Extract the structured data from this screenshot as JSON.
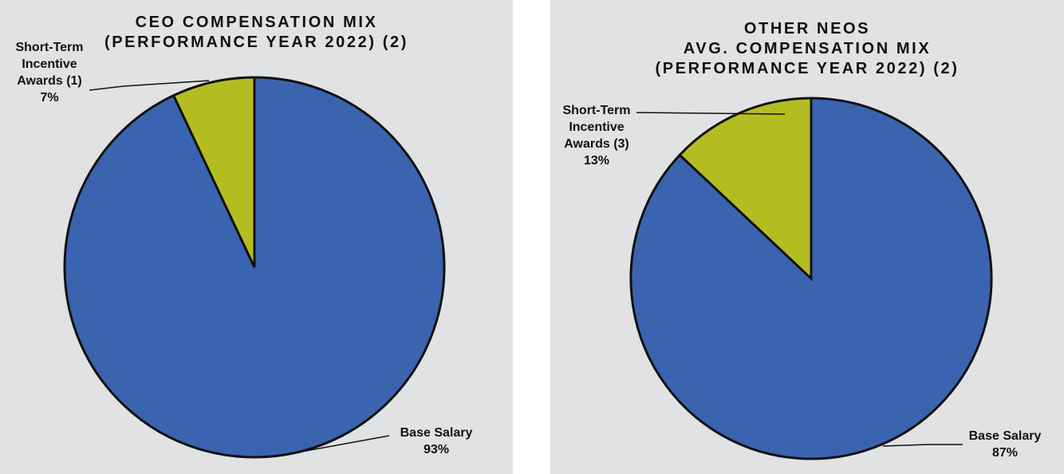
{
  "colors": {
    "panel_bg": "#e1e2e4",
    "base_salary": "#3a64b0",
    "short_term_incentive": "#b3bd22",
    "outline": "#111111"
  },
  "chart_data": [
    {
      "type": "pie",
      "title_lines": [
        "CEO COMPENSATION MIX",
        "(PERFORMANCE YEAR 2022) (2)"
      ],
      "slices": [
        {
          "label": "Base Salary",
          "label_lines": [
            "Base Salary"
          ],
          "value": 93,
          "value_label": "93%",
          "color": "#3a64b0"
        },
        {
          "label": "Short-Term Incentive Awards (1)",
          "label_lines": [
            "Short-Term",
            "Incentive",
            "Awards (1)"
          ],
          "value": 7,
          "value_label": "7%",
          "color": "#b3bd22"
        }
      ]
    },
    {
      "type": "pie",
      "title_lines": [
        "OTHER NEOS",
        "AVG. COMPENSATION MIX",
        "(PERFORMANCE YEAR 2022) (2)"
      ],
      "slices": [
        {
          "label": "Base Salary",
          "label_lines": [
            "Base Salary"
          ],
          "value": 87,
          "value_label": "87%",
          "color": "#3a64b0"
        },
        {
          "label": "Short-Term Incentive Awards (3)",
          "label_lines": [
            "Short-Term",
            "Incentive",
            "Awards (3)"
          ],
          "value": 13,
          "value_label": "13%",
          "color": "#b3bd22"
        }
      ]
    }
  ]
}
